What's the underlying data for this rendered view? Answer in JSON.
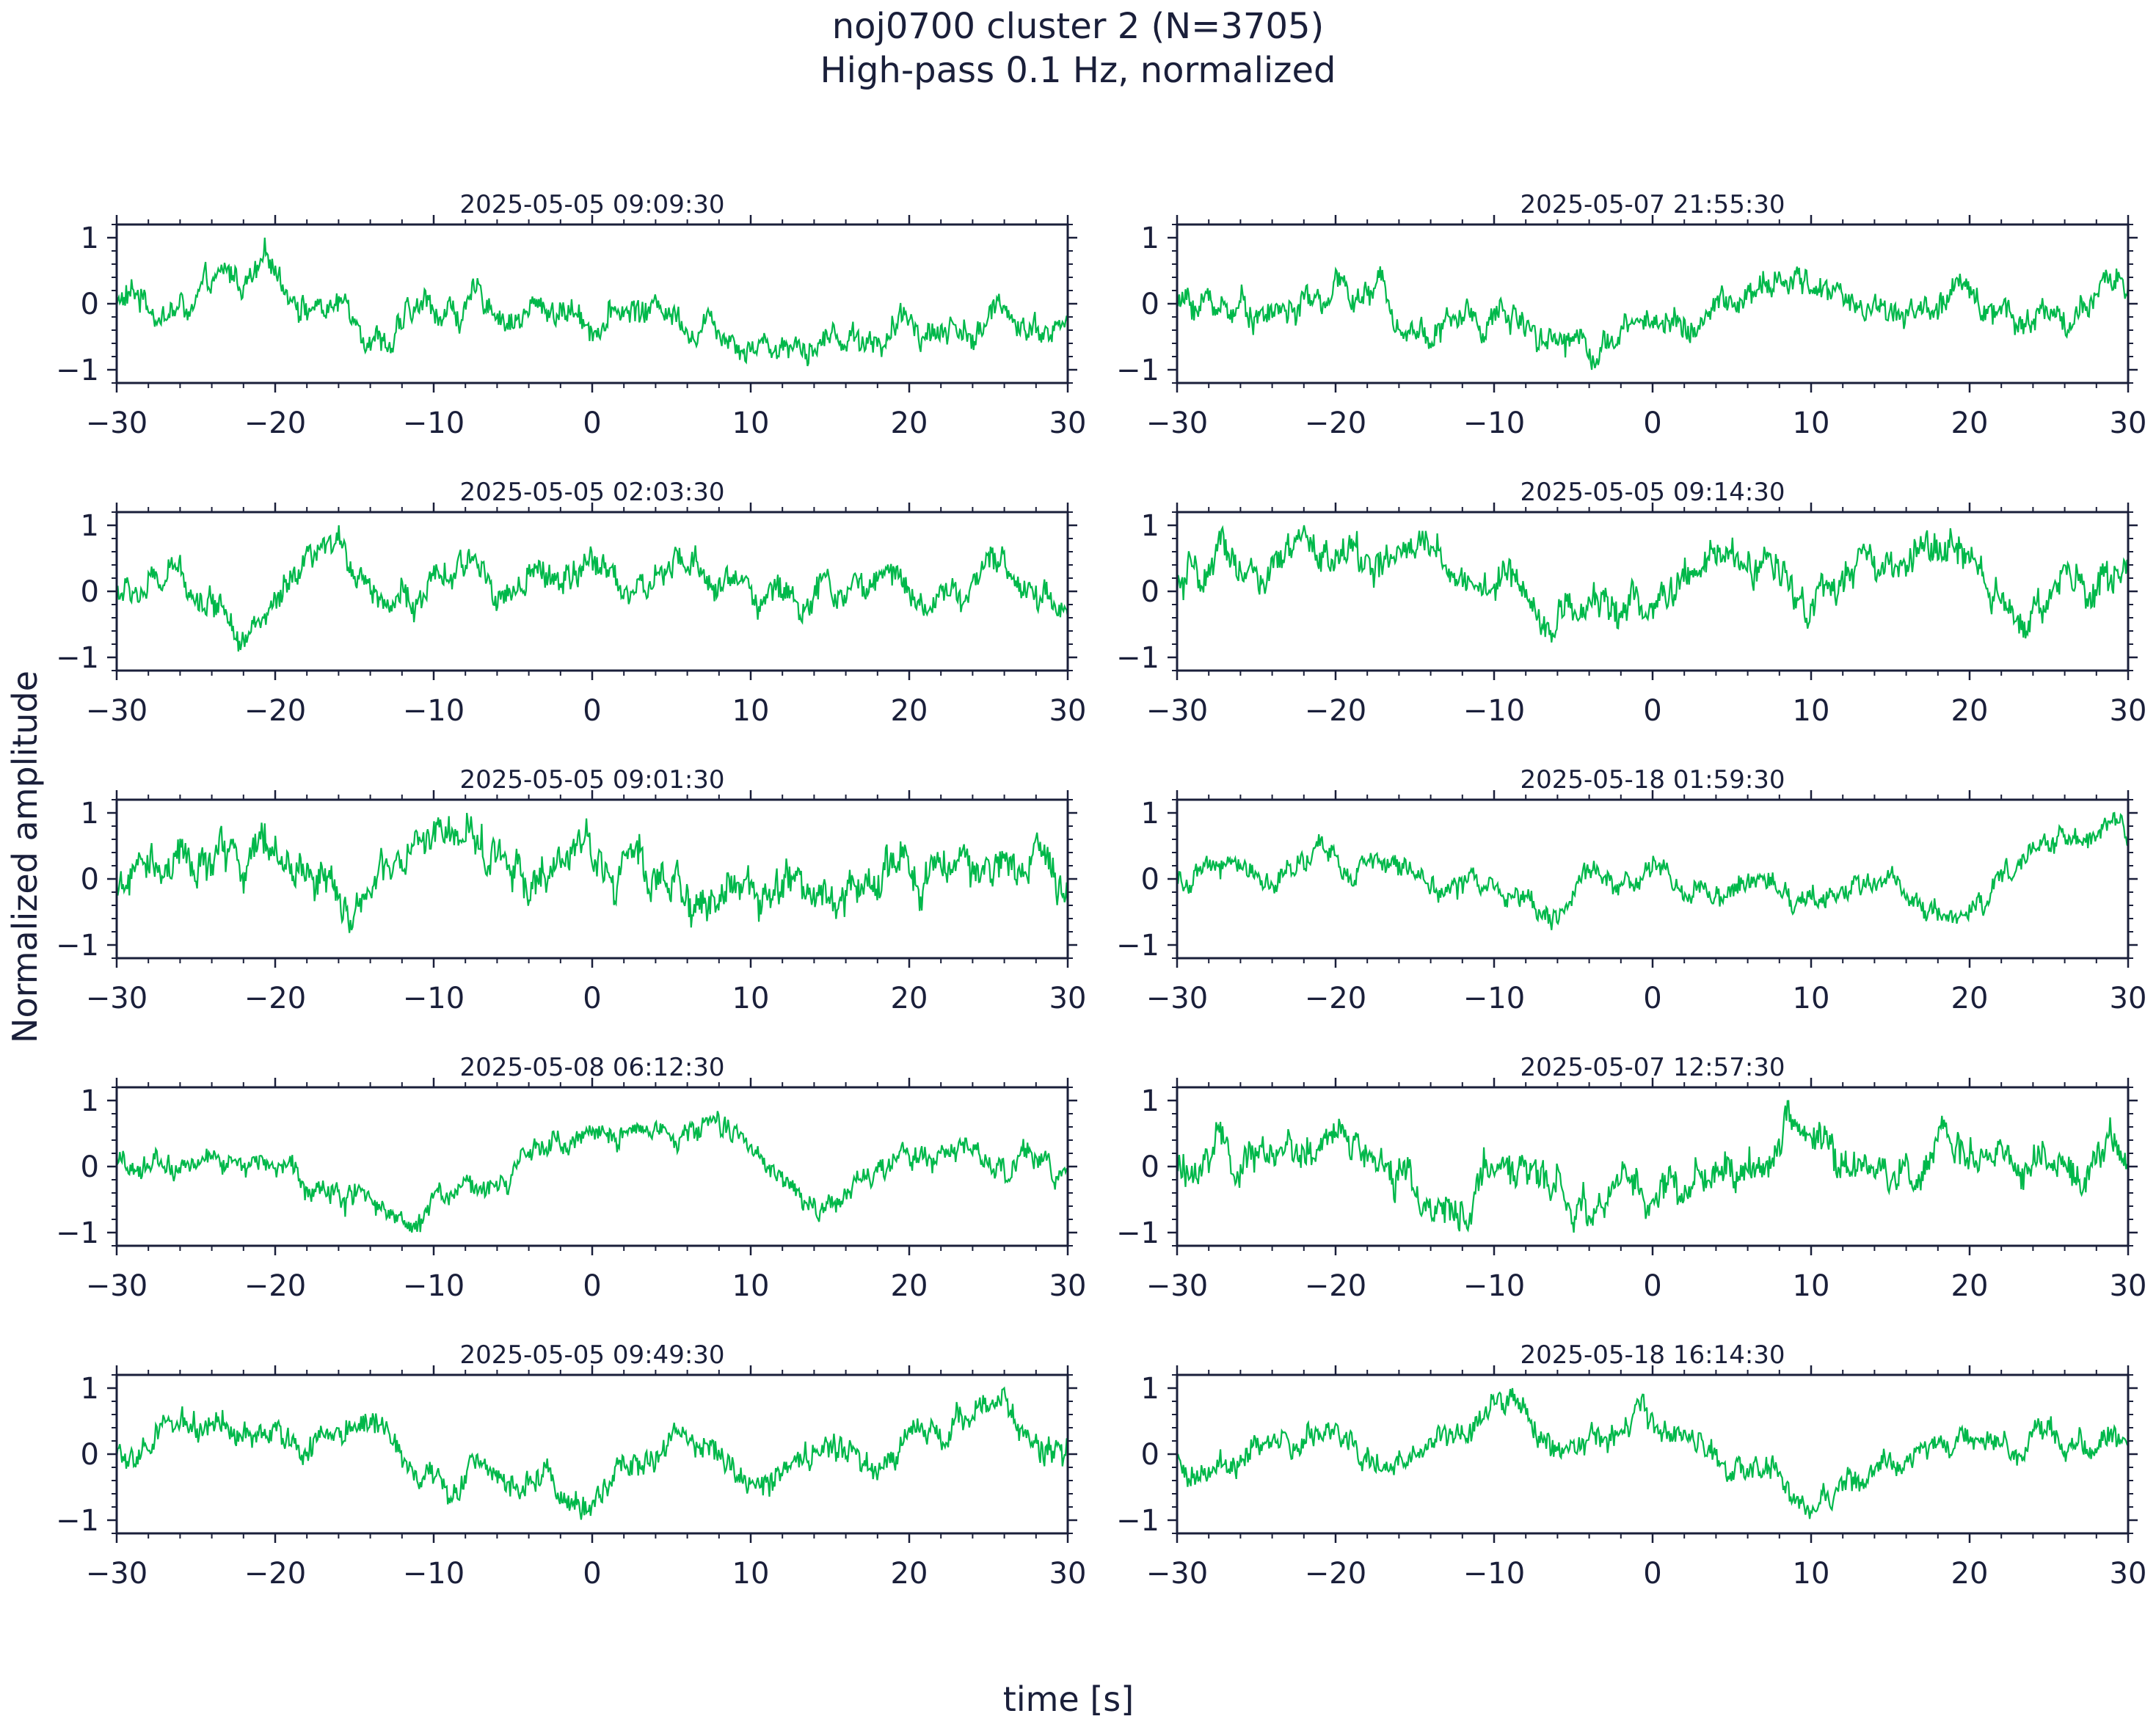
{
  "chart_data": {
    "type": "line",
    "title": "noj0700 cluster 2 (N=3705)",
    "subtitle": "High-pass 0.1 Hz, normalized",
    "xlabel": "time [s]",
    "ylabel": "Normalized amplitude",
    "xlim": [
      -30,
      30
    ],
    "ylim": [
      -1.2,
      1.2
    ],
    "x_ticks": [
      -30,
      -20,
      -10,
      0,
      10,
      20,
      30
    ],
    "y_ticks": [
      -1,
      0,
      1
    ],
    "line_color": "#00b84a",
    "panels": [
      {
        "title": "2025-05-05 09:09:30",
        "column": "left",
        "row": 1
      },
      {
        "title": "2025-05-07 21:55:30",
        "column": "right",
        "row": 1
      },
      {
        "title": "2025-05-05 02:03:30",
        "column": "left",
        "row": 2
      },
      {
        "title": "2025-05-05 09:14:30",
        "column": "right",
        "row": 2
      },
      {
        "title": "2025-05-05 09:01:30",
        "column": "left",
        "row": 3
      },
      {
        "title": "2025-05-18 01:59:30",
        "column": "right",
        "row": 3
      },
      {
        "title": "2025-05-08 06:12:30",
        "column": "left",
        "row": 4
      },
      {
        "title": "2025-05-07 12:57:30",
        "column": "right",
        "row": 4
      },
      {
        "title": "2025-05-05 09:49:30",
        "column": "left",
        "row": 5
      },
      {
        "title": "2025-05-18 16:14:30",
        "column": "right",
        "row": 5
      }
    ]
  }
}
